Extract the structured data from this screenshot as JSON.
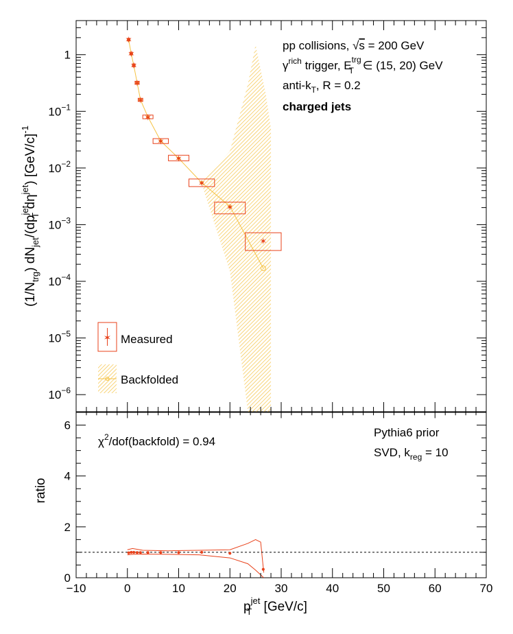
{
  "chart_data": [
    {
      "type": "scatter",
      "panel": "upper",
      "y_scale": "log",
      "xlim": [
        -10,
        70
      ],
      "ylim": [
        5e-07,
        4
      ],
      "ylabel_parts": {
        "a": "(1/N",
        "b": "trg",
        "c": ") dN",
        "d": "jet",
        "e": "/(dp",
        "f": "jet",
        "g": "T",
        "h": " dη",
        "i": "jet",
        "j": ") [GeV/c]",
        "k": "-1"
      },
      "y_ticks": [
        {
          "v": 1,
          "base": "1",
          "exp": ""
        },
        {
          "v": 0.1,
          "base": "10",
          "exp": "−1"
        },
        {
          "v": 0.01,
          "base": "10",
          "exp": "−2"
        },
        {
          "v": 0.001,
          "base": "10",
          "exp": "−3"
        },
        {
          "v": 0.0001,
          "base": "10",
          "exp": "−4"
        },
        {
          "v": 1e-05,
          "base": "10",
          "exp": "−5"
        },
        {
          "v": 1e-06,
          "base": "10",
          "exp": "−6"
        }
      ],
      "annotations": {
        "line1": "pp collisions, ",
        "line1_sqrt": "√",
        "line1_s": "s",
        "line1_end": " = 200 GeV",
        "line2_gamma": "γ",
        "line2_rich": "rich",
        "line2_mid": " trigger, E",
        "line2_trg": "trg",
        "line2_T": "T",
        "line2_end": " ∈ (15, 20) GeV",
        "line3": "anti-k",
        "line3_T": "T",
        "line3_end": ", R = 0.2",
        "line4": "charged jets"
      },
      "legend": [
        {
          "name": "Measured",
          "color": "#e8411a"
        },
        {
          "name": "Backfolded",
          "color": "#f5c242"
        }
      ],
      "series": [
        {
          "name": "Measured",
          "color": "#e8411a",
          "points": [
            {
              "x": 0.25,
              "y": 1.85,
              "xlo": 0,
              "xhi": 0.5,
              "ylo": 1.75,
              "yhi": 1.95
            },
            {
              "x": 0.75,
              "y": 1.05,
              "xlo": 0.5,
              "xhi": 1.0,
              "ylo": 0.99,
              "yhi": 1.11
            },
            {
              "x": 1.25,
              "y": 0.65,
              "xlo": 1.0,
              "xhi": 1.5,
              "ylo": 0.61,
              "yhi": 0.69
            },
            {
              "x": 1.9,
              "y": 0.32,
              "xlo": 1.5,
              "xhi": 2.3,
              "ylo": 0.3,
              "yhi": 0.34
            },
            {
              "x": 2.55,
              "y": 0.16,
              "xlo": 2.1,
              "xhi": 3.0,
              "ylo": 0.15,
              "yhi": 0.17
            },
            {
              "x": 4.0,
              "y": 0.08,
              "xlo": 3.0,
              "xhi": 5.0,
              "ylo": 0.074,
              "yhi": 0.086
            },
            {
              "x": 6.5,
              "y": 0.03,
              "xlo": 5.0,
              "xhi": 8.0,
              "ylo": 0.027,
              "yhi": 0.033
            },
            {
              "x": 10.0,
              "y": 0.015,
              "xlo": 8.0,
              "xhi": 12.0,
              "ylo": 0.0134,
              "yhi": 0.0168
            },
            {
              "x": 14.5,
              "y": 0.0055,
              "xlo": 12.0,
              "xhi": 17.0,
              "ylo": 0.0047,
              "yhi": 0.0064
            },
            {
              "x": 20.0,
              "y": 0.00205,
              "xlo": 17.0,
              "xhi": 23.0,
              "ylo": 0.00155,
              "yhi": 0.0025
            },
            {
              "x": 26.5,
              "y": 0.00052,
              "xlo": 23.0,
              "xhi": 30.0,
              "ylo": 0.00035,
              "yhi": 0.00072
            }
          ]
        },
        {
          "name": "Backfolded",
          "color": "#f5c242",
          "x": [
            0.25,
            0.75,
            1.25,
            1.9,
            2.55,
            4.0,
            6.5,
            10.0,
            14.5,
            20.0,
            26.5
          ],
          "y": [
            1.82,
            1.04,
            0.64,
            0.32,
            0.16,
            0.08,
            0.03,
            0.0148,
            0.0055,
            0.0021,
            0.00017
          ],
          "band": [
            {
              "x": 14.5,
              "lo": 0.0052,
              "hi": 0.0058
            },
            {
              "x": 20.0,
              "lo": 0.00015,
              "hi": 0.02
            },
            {
              "x": 23.5,
              "lo": 5e-07,
              "hi": 0.3
            },
            {
              "x": 25.0,
              "lo": 5e-07,
              "hi": 1.5
            },
            {
              "x": 27.0,
              "lo": 5e-07,
              "hi": 0.2
            },
            {
              "x": 28.0,
              "lo": 5e-07,
              "hi": 0.05
            }
          ]
        }
      ]
    },
    {
      "type": "line",
      "panel": "lower",
      "xlim": [
        -10,
        70
      ],
      "ylim": [
        0,
        6.5
      ],
      "xlabel_p": "p",
      "xlabel_T": "T",
      "xlabel_jet": "jet",
      "xlabel_end": " [GeV/c]",
      "ylabel": "ratio",
      "x_ticks": [
        "−10",
        "0",
        "10",
        "20",
        "30",
        "40",
        "50",
        "60",
        "70"
      ],
      "y_ticks": [
        "0",
        "2",
        "4",
        "6"
      ],
      "reference_line": 1.0,
      "annotations": {
        "chi2_a": "χ",
        "chi2_sup": "2",
        "chi2_b": "/dof(backfold) = 0.94",
        "prior": "Pythia6 prior",
        "svd": "SVD, k",
        "svd_sub": "reg",
        "svd_end": " = 10"
      },
      "series": [
        {
          "name": "ratio",
          "color": "#e8411a",
          "points": [
            {
              "x": 0.25,
              "y": 0.98
            },
            {
              "x": 0.75,
              "y": 1.0
            },
            {
              "x": 1.25,
              "y": 1.0
            },
            {
              "x": 1.9,
              "y": 0.99
            },
            {
              "x": 2.55,
              "y": 0.99
            },
            {
              "x": 4.0,
              "y": 0.99
            },
            {
              "x": 6.5,
              "y": 0.99
            },
            {
              "x": 10.0,
              "y": 0.99
            },
            {
              "x": 14.5,
              "y": 1.0
            },
            {
              "x": 20.0,
              "y": 0.96
            },
            {
              "x": 26.5,
              "y": 0.33
            }
          ],
          "band_upper": [
            {
              "x": 0.0,
              "y": 1.1
            },
            {
              "x": 1.0,
              "y": 1.15
            },
            {
              "x": 3.0,
              "y": 1.08
            },
            {
              "x": 8.0,
              "y": 1.06
            },
            {
              "x": 14.0,
              "y": 1.08
            },
            {
              "x": 20.0,
              "y": 1.1
            },
            {
              "x": 23.5,
              "y": 1.35
            },
            {
              "x": 25.0,
              "y": 1.5
            },
            {
              "x": 26.0,
              "y": 1.4
            },
            {
              "x": 26.6,
              "y": 0.2
            }
          ],
          "band_lower": [
            {
              "x": 0.0,
              "y": 0.9
            },
            {
              "x": 1.0,
              "y": 0.92
            },
            {
              "x": 3.0,
              "y": 0.93
            },
            {
              "x": 8.0,
              "y": 0.92
            },
            {
              "x": 14.0,
              "y": 0.9
            },
            {
              "x": 20.0,
              "y": 0.78
            },
            {
              "x": 23.5,
              "y": 0.55
            },
            {
              "x": 25.0,
              "y": 0.3
            },
            {
              "x": 26.6,
              "y": 0.0
            }
          ]
        }
      ]
    }
  ]
}
